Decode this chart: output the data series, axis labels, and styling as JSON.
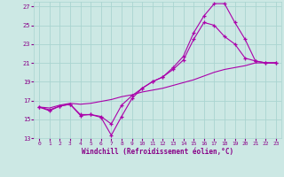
{
  "xlabel": "Windchill (Refroidissement éolien,°C)",
  "bg_color": "#cce8e4",
  "grid_color": "#aad4d0",
  "line_color": "#aa00aa",
  "xlim": [
    -0.5,
    23.5
  ],
  "ylim": [
    13,
    27.5
  ],
  "xticks": [
    0,
    1,
    2,
    3,
    4,
    5,
    6,
    7,
    8,
    9,
    10,
    11,
    12,
    13,
    14,
    15,
    16,
    17,
    18,
    19,
    20,
    21,
    22,
    23
  ],
  "yticks": [
    13,
    15,
    17,
    19,
    21,
    23,
    25,
    27
  ],
  "curve1_x": [
    0,
    1,
    2,
    3,
    4,
    5,
    6,
    7,
    8,
    9,
    10,
    11,
    12,
    13,
    14,
    15,
    16,
    17,
    18,
    19,
    20,
    21,
    22,
    23
  ],
  "curve1_y": [
    16.3,
    15.9,
    16.4,
    16.6,
    15.4,
    15.5,
    15.2,
    13.3,
    15.3,
    17.2,
    18.3,
    19.0,
    19.5,
    20.5,
    21.7,
    24.2,
    26.0,
    27.3,
    27.3,
    25.3,
    23.5,
    21.2,
    21.0,
    21.0
  ],
  "curve2_x": [
    0,
    1,
    2,
    3,
    4,
    5,
    6,
    7,
    8,
    9,
    10,
    11,
    12,
    13,
    14,
    15,
    16,
    17,
    18,
    19,
    20,
    21,
    22,
    23
  ],
  "curve2_y": [
    16.3,
    16.0,
    16.4,
    16.6,
    15.5,
    15.5,
    15.3,
    14.5,
    16.5,
    17.5,
    18.3,
    19.0,
    19.5,
    20.3,
    21.3,
    23.5,
    25.3,
    25.0,
    23.8,
    23.0,
    21.5,
    21.2,
    21.0,
    21.0
  ],
  "curve3_x": [
    0,
    1,
    2,
    3,
    4,
    5,
    6,
    7,
    8,
    9,
    10,
    11,
    12,
    13,
    14,
    15,
    16,
    17,
    18,
    19,
    20,
    21,
    22,
    23
  ],
  "curve3_y": [
    16.3,
    16.2,
    16.5,
    16.7,
    16.6,
    16.7,
    16.9,
    17.1,
    17.4,
    17.6,
    17.9,
    18.1,
    18.3,
    18.6,
    18.9,
    19.2,
    19.6,
    20.0,
    20.3,
    20.5,
    20.7,
    21.0,
    21.0,
    21.0
  ]
}
